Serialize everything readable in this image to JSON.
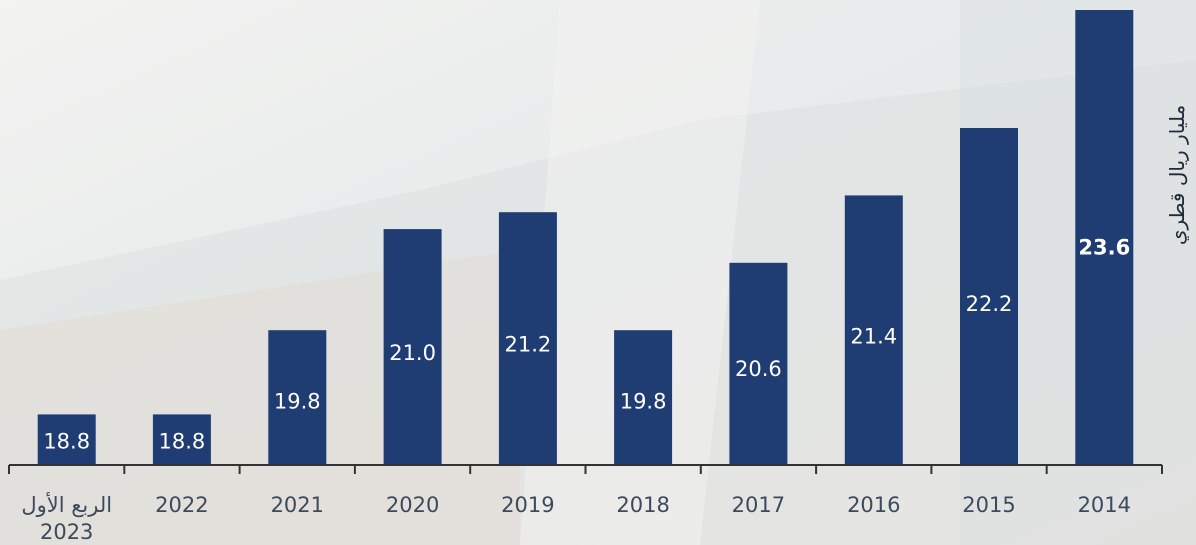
{
  "chart_data": {
    "type": "bar",
    "title": "",
    "xlabel": "",
    "ylabel": "مليار ريال قطري",
    "categories": [
      [
        "الربع الأول",
        "2023"
      ],
      [
        "2022"
      ],
      [
        "2021"
      ],
      [
        "2020"
      ],
      [
        "2019"
      ],
      [
        "2018"
      ],
      [
        "2017"
      ],
      [
        "2016"
      ],
      [
        "2015"
      ],
      [
        "2014"
      ]
    ],
    "values": [
      18.8,
      18.8,
      19.8,
      21.0,
      21.2,
      19.8,
      20.6,
      21.4,
      22.2,
      23.6
    ],
    "value_labels": [
      "18.8",
      "18.8",
      "19.8",
      "21.0",
      "21.2",
      "19.8",
      "20.6",
      "21.4",
      "22.2",
      "23.6"
    ],
    "highlight_index": 9,
    "ylim": [
      18.2,
      23.6
    ],
    "grid": false,
    "legend": "none",
    "colors": {
      "bar": "#1f3c73",
      "axis": "#333333",
      "tick_text": "#3c4a5c",
      "label_text": "#ffffff",
      "background": "#eef0f0"
    }
  }
}
